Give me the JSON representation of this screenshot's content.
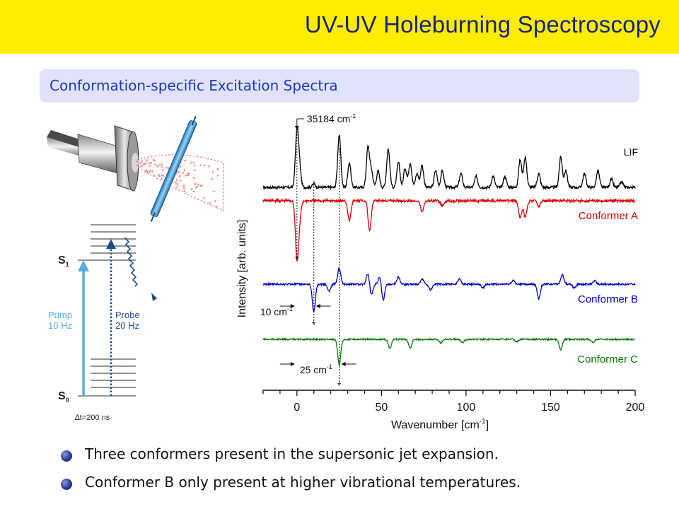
{
  "slide": {
    "title": "UV-UV Holeburning Spectroscopy",
    "subtitle": "Conformation-specific Excitation Spectra",
    "bullets": [
      "Three conformers present in the supersonic jet expansion.",
      "Conformer B only present at higher vibrational temperatures."
    ]
  },
  "colors": {
    "title_bar": "#ffed00",
    "title_text": "#1a237e",
    "subtitle_box": "#e0e3fb",
    "subtitle_text": "#1c37c9",
    "lif": "#000000",
    "conformer_a": "#e00000",
    "conformer_b": "#0000cc",
    "conformer_c": "#007a00",
    "pump": "#5aace2",
    "probe": "#1a4c8c"
  },
  "diagram": {
    "icons": [
      "nozzle-icon",
      "laser-beam-icon",
      "jet-expansion-icon"
    ],
    "s1_label": "S",
    "s1_sub": "1",
    "s0_label": "S",
    "s0_sub": "0",
    "pump_label": "Pump",
    "pump_rate": "10 Hz",
    "probe_label": "Probe",
    "probe_rate": "20 Hz",
    "delay_label": "∆t=200 ns"
  },
  "chart_data": {
    "type": "line",
    "xlabel": "Wavenumber [cm",
    "xlabel_sup": "-1",
    "xlabel_end": "]",
    "ylabel": "Intensity [arb. units]",
    "xlim": [
      -20,
      200
    ],
    "xticks": [
      0,
      50,
      100,
      150,
      200
    ],
    "origin_annotation": "35184 cm",
    "origin_annotation_sup": "-1",
    "origin_x": 0,
    "marker_x": [
      0,
      10,
      25
    ],
    "marker_symbol": "*",
    "offset_labels": [
      {
        "text": "10 cm",
        "sup": "-1",
        "from": 0,
        "to": 10
      },
      {
        "text": "25 cm",
        "sup": "-1",
        "from": 0,
        "to": 25
      }
    ],
    "series": [
      {
        "name": "LIF",
        "kind": "emission",
        "peaks": [
          [
            0,
            1.0
          ],
          [
            1.5,
            0.35
          ],
          [
            10,
            0.06
          ],
          [
            25,
            0.95
          ],
          [
            31,
            0.45
          ],
          [
            42,
            0.72
          ],
          [
            44,
            0.3
          ],
          [
            48,
            0.3
          ],
          [
            54,
            0.7
          ],
          [
            60,
            0.45
          ],
          [
            64,
            0.35
          ],
          [
            67,
            0.45
          ],
          [
            71,
            0.25
          ],
          [
            74,
            0.4
          ],
          [
            82,
            0.3
          ],
          [
            86,
            0.3
          ],
          [
            97,
            0.25
          ],
          [
            106,
            0.2
          ],
          [
            116,
            0.2
          ],
          [
            123,
            0.2
          ],
          [
            132,
            0.5
          ],
          [
            135,
            0.55
          ],
          [
            143,
            0.25
          ],
          [
            156,
            0.55
          ],
          [
            159,
            0.3
          ],
          [
            170,
            0.25
          ],
          [
            178,
            0.3
          ],
          [
            186,
            0.15
          ],
          [
            192,
            0.1
          ]
        ]
      },
      {
        "name": "Conformer A",
        "kind": "depletion",
        "peaks": [
          [
            0,
            1.0
          ],
          [
            1.5,
            0.3
          ],
          [
            31,
            0.35
          ],
          [
            43,
            0.55
          ],
          [
            74,
            0.2
          ],
          [
            86,
            0.1
          ],
          [
            132,
            0.3
          ],
          [
            135,
            0.3
          ],
          [
            143,
            0.1
          ]
        ]
      },
      {
        "name": "Conformer B",
        "kind": "depletion",
        "peaks": [
          [
            10,
            0.75
          ],
          [
            25,
            -0.45
          ],
          [
            19,
            0.2
          ],
          [
            42,
            -0.3
          ],
          [
            44,
            0.3
          ],
          [
            49,
            -0.2
          ],
          [
            51,
            0.45
          ],
          [
            60,
            -0.2
          ],
          [
            74,
            -0.15
          ],
          [
            79,
            0.15
          ],
          [
            96,
            -0.15
          ],
          [
            110,
            0.1
          ],
          [
            128,
            -0.1
          ],
          [
            143,
            0.4
          ],
          [
            157,
            -0.25
          ],
          [
            164,
            0.1
          ],
          [
            176,
            -0.1
          ]
        ]
      },
      {
        "name": "Conformer C",
        "kind": "depletion",
        "peaks": [
          [
            25,
            0.85
          ],
          [
            55,
            0.3
          ],
          [
            67,
            0.3
          ],
          [
            85,
            0.12
          ],
          [
            98,
            0.1
          ],
          [
            130,
            0.08
          ],
          [
            156,
            0.35
          ],
          [
            175,
            0.1
          ]
        ]
      }
    ]
  }
}
